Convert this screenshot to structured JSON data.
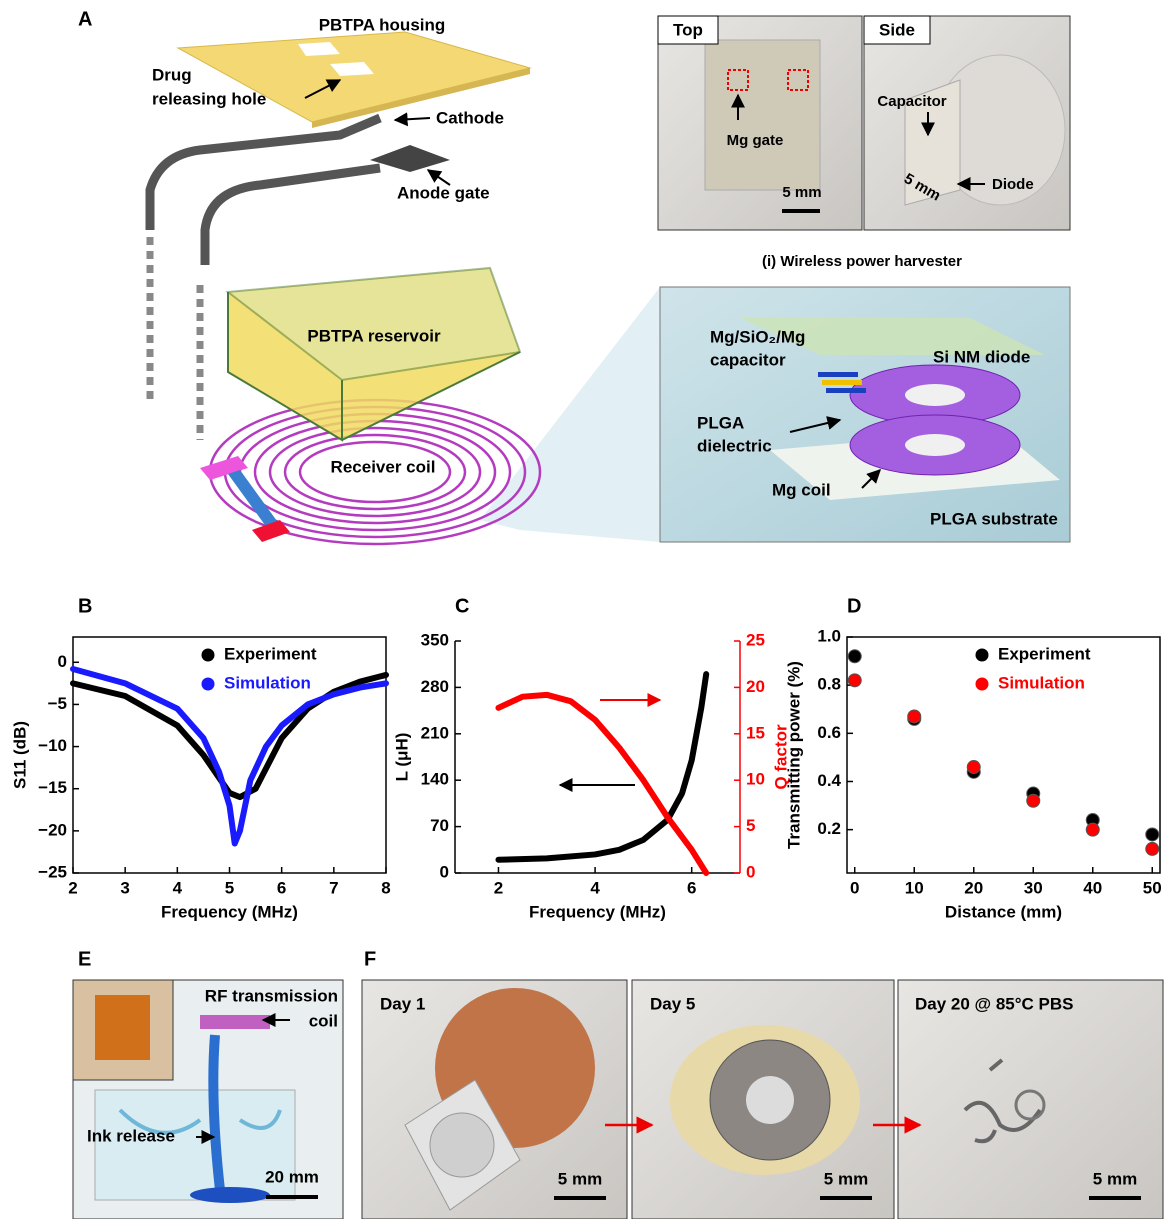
{
  "panel_labels": [
    "A",
    "B",
    "C",
    "D",
    "E",
    "F"
  ],
  "panel_a": {
    "housing": "PBTPA housing",
    "drug_hole": [
      "Drug",
      "releasing hole"
    ],
    "cathode": "Cathode",
    "anode_gate": "Anode gate",
    "reservoir": "PBTPA reservoir",
    "receiver_coil": "Receiver coil",
    "photo_top": {
      "tag": "Top",
      "gate": "Mg gate",
      "scale": "5 mm"
    },
    "photo_side": {
      "tag": "Side",
      "capacitor": "Capacitor",
      "scale": "5 mm",
      "diode": "Diode"
    },
    "caption": "(i) Wireless power harvester",
    "inset": {
      "capacitor": [
        "Mg/SiO₂/Mg",
        "capacitor"
      ],
      "diode": "Si NM diode",
      "dielectric": [
        "PLGA",
        "dielectric"
      ],
      "coil": "Mg  coil",
      "substrate": "PLGA substrate"
    }
  },
  "panel_e": {
    "coil": [
      "RF transmission",
      "coil"
    ],
    "ink": "Ink release",
    "scale": "20 mm"
  },
  "panel_f": [
    {
      "day": "Day 1",
      "scale": "5 mm"
    },
    {
      "day": "Day 5",
      "scale": "5 mm"
    },
    {
      "day": "Day 20 @ 85°C PBS",
      "scale": "5 mm"
    }
  ],
  "chart_data": [
    {
      "type": "line",
      "xlabel": "Frequency (MHz)",
      "ylabel": "S11 (dB)",
      "frame": true,
      "legend": "upper right",
      "xlim": [
        2,
        8
      ],
      "xticks": [
        2,
        3,
        4,
        5,
        6,
        7,
        8
      ],
      "ylim": [
        -25,
        3
      ],
      "yticks": [
        0,
        {
          "value": -5,
          "label": "−5"
        },
        {
          "value": -10,
          "label": "−10"
        },
        {
          "value": -15,
          "label": "−15"
        },
        {
          "value": -20,
          "label": "−20"
        },
        {
          "value": -25,
          "label": "−25"
        }
      ],
      "series": [
        {
          "name": "Experiment",
          "color": "#000000",
          "x": [
            2,
            3,
            4,
            4.5,
            5,
            5.2,
            5.5,
            6,
            6.5,
            7,
            7.5,
            8
          ],
          "values": [
            -2.5,
            -4,
            -7.5,
            -11,
            -15.5,
            -16,
            -15,
            -9,
            -5.5,
            -3.5,
            -2.3,
            -1.5
          ]
        },
        {
          "name": "Simulation",
          "color": "#1a1aff",
          "x": [
            2,
            3,
            4,
            4.5,
            4.8,
            5,
            5.1,
            5.2,
            5.4,
            5.7,
            6,
            6.5,
            7,
            7.5,
            8
          ],
          "values": [
            -0.8,
            -2.5,
            -5.5,
            -9,
            -13,
            -17,
            -21.5,
            -20,
            -14,
            -10,
            -7.5,
            -5,
            -3.8,
            -3,
            -2.5
          ]
        }
      ]
    },
    {
      "type": "line",
      "xlabel": "Frequency (MHz)",
      "ylabel": "L (μH)",
      "y2label": "Q factor",
      "frame": false,
      "xlim": [
        1.1,
        7
      ],
      "xticks": [
        2,
        4,
        6
      ],
      "ylim": [
        0,
        350
      ],
      "yticks": [
        0,
        70,
        140,
        210,
        280,
        350
      ],
      "y2lim": [
        0,
        25
      ],
      "y2ticks": [
        0,
        5,
        10,
        15,
        20,
        25
      ],
      "series": [
        {
          "name": "L",
          "color": "#000000",
          "x": [
            2,
            3,
            4,
            4.5,
            5,
            5.5,
            5.8,
            6,
            6.1,
            6.2,
            6.3
          ],
          "values": [
            20,
            22,
            28,
            35,
            50,
            80,
            120,
            170,
            210,
            250,
            300
          ]
        },
        {
          "name": "Q factor",
          "color": "#ff0000",
          "axis": "y2",
          "x": [
            2,
            2.5,
            3,
            3.5,
            4,
            4.5,
            5,
            5.5,
            6,
            6.3
          ],
          "values": [
            17.8,
            19,
            19.2,
            18.5,
            16.5,
            13.5,
            10,
            6,
            2.5,
            0
          ]
        }
      ]
    },
    {
      "type": "scatter",
      "xlabel": "Distance (mm)",
      "ylabel": "Transmitting power (%)",
      "frame": true,
      "legend": "upper right",
      "xlim": [
        -1.3,
        51.3
      ],
      "xticks": [
        0,
        10,
        20,
        30,
        40,
        50
      ],
      "ylim": [
        0.02,
        1
      ],
      "yticks": [
        0.2,
        0.4,
        0.6,
        0.8,
        {
          "value": 1,
          "label": "1.0"
        }
      ],
      "series": [
        {
          "name": "Experiment",
          "color": "#000000",
          "x": [
            0,
            10,
            20,
            30,
            40,
            50
          ],
          "values": [
            0.92,
            0.66,
            0.44,
            0.35,
            0.24,
            0.18
          ]
        },
        {
          "name": "Simulation",
          "color": "#ff0000",
          "x": [
            0,
            10,
            20,
            30,
            40,
            50
          ],
          "values": [
            0.82,
            0.67,
            0.46,
            0.32,
            0.2,
            0.12
          ]
        }
      ]
    }
  ]
}
